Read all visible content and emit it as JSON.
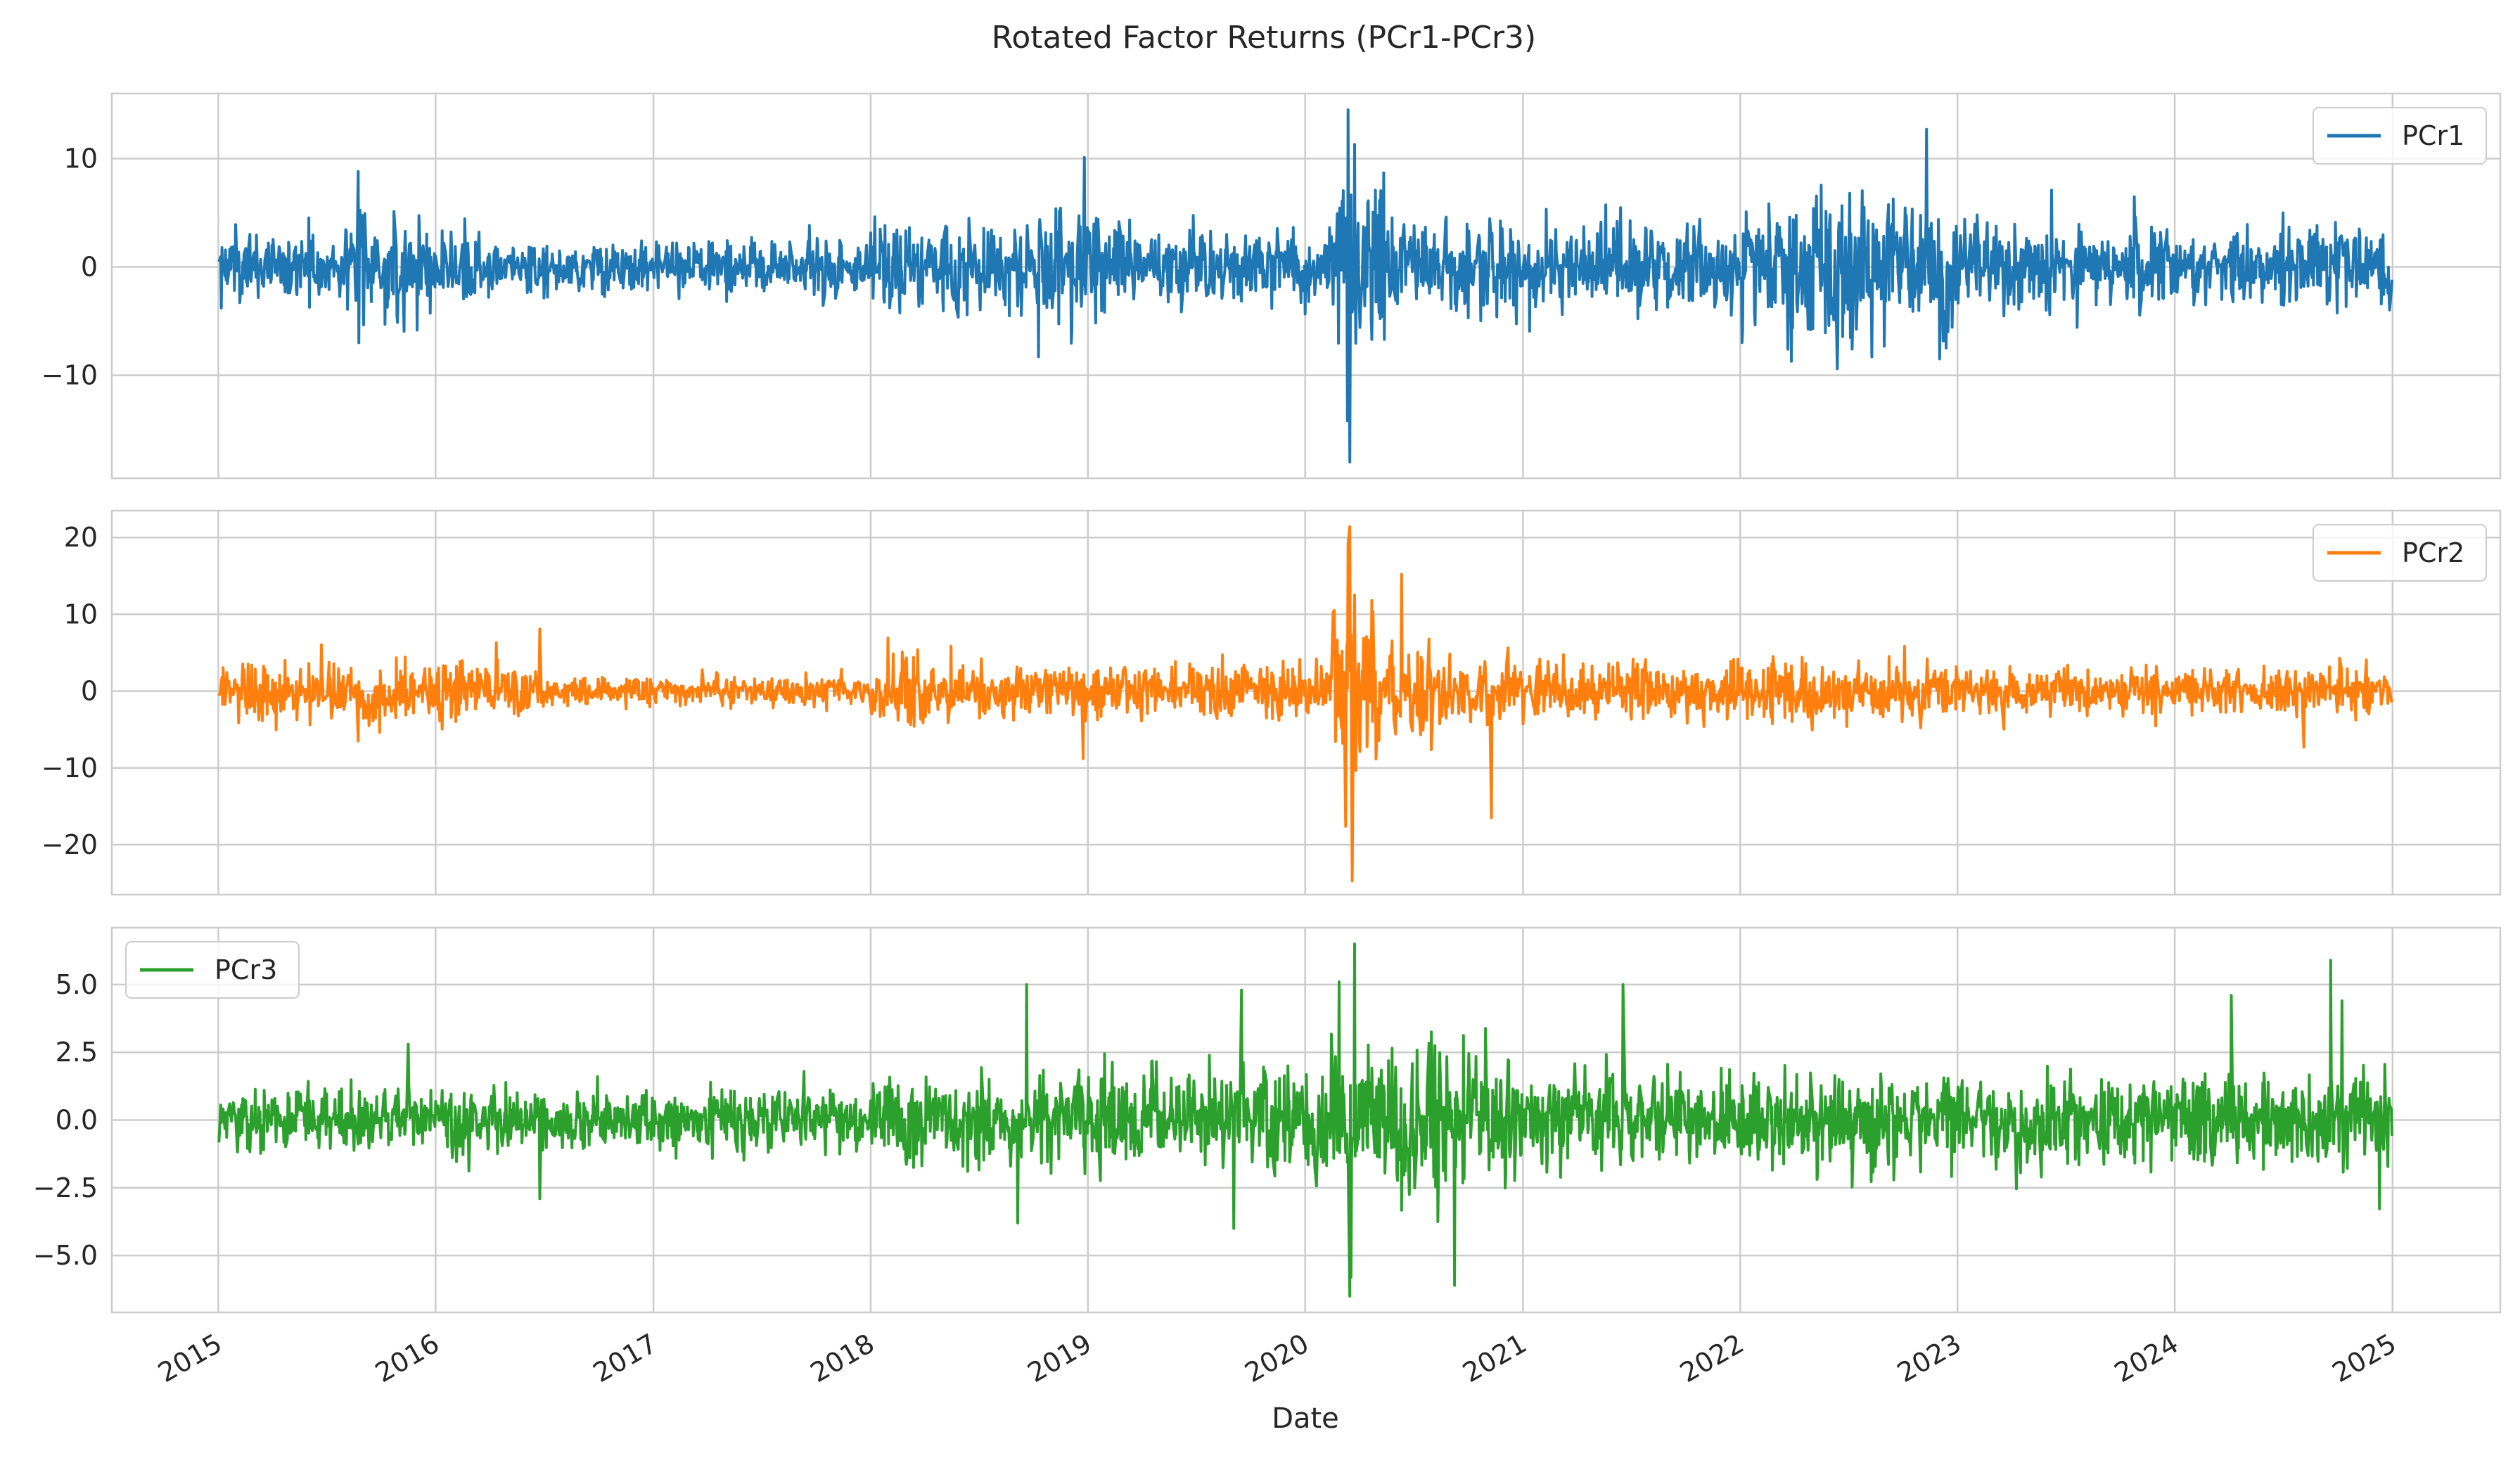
{
  "figure": {
    "title": "Rotated Factor Returns (PCr1-PCr3)",
    "xlabel": "Date"
  },
  "chart_data": [
    {
      "type": "line",
      "series_name": "PCr1",
      "color": "#1f77b4",
      "legend_loc": "upper right",
      "xlim": [
        "2014-07-06",
        "2025-07-01"
      ],
      "ylim": [
        -19.5,
        16.0
      ],
      "yticks": [
        -10,
        0,
        10
      ],
      "ytick_labels": [
        "−10",
        "0",
        "10"
      ],
      "grid": true,
      "date_range": [
        "2015-01-02",
        "2024-12-31"
      ],
      "extrema": [
        {
          "date": "2015-08-24",
          "value": 8.8
        },
        {
          "date": "2015-08-24",
          "value": -7.0
        },
        {
          "date": "2018-12-26",
          "value": 10.1
        },
        {
          "date": "2018-10-10",
          "value": -8.3
        },
        {
          "date": "2020-03-13",
          "value": 14.5
        },
        {
          "date": "2020-03-16",
          "value": -18.0
        },
        {
          "date": "2020-03-24",
          "value": 11.3
        },
        {
          "date": "2020-03-12",
          "value": -14.2
        },
        {
          "date": "2022-11-10",
          "value": 12.7
        },
        {
          "date": "2022-06-13",
          "value": -9.4
        }
      ],
      "volatility_regimes": [
        {
          "start": "2015-01-01",
          "end": "2015-07-31",
          "std": 1.5
        },
        {
          "start": "2015-08-01",
          "end": "2016-03-31",
          "std": 2.3
        },
        {
          "start": "2016-04-01",
          "end": "2017-12-31",
          "std": 1.2
        },
        {
          "start": "2018-01-01",
          "end": "2018-09-30",
          "std": 1.9
        },
        {
          "start": "2018-10-01",
          "end": "2019-01-31",
          "std": 3.2
        },
        {
          "start": "2019-02-01",
          "end": "2020-02-15",
          "std": 1.7
        },
        {
          "start": "2020-02-16",
          "end": "2020-05-15",
          "std": 4.5
        },
        {
          "start": "2020-05-16",
          "end": "2021-12-31",
          "std": 2.0
        },
        {
          "start": "2022-01-01",
          "end": "2022-12-31",
          "std": 3.2
        },
        {
          "start": "2023-01-01",
          "end": "2024-12-31",
          "std": 1.9
        }
      ]
    },
    {
      "type": "line",
      "series_name": "PCr2",
      "color": "#ff7f0e",
      "legend_loc": "upper right",
      "xlim": [
        "2014-07-06",
        "2025-07-01"
      ],
      "ylim": [
        -26.5,
        23.5
      ],
      "yticks": [
        -20,
        -10,
        0,
        10,
        20
      ],
      "ytick_labels": [
        "−20",
        "−10",
        "0",
        "10",
        "20"
      ],
      "grid": true,
      "date_range": [
        "2015-01-02",
        "2024-12-31"
      ],
      "extrema": [
        {
          "date": "2016-06-24",
          "value": 8.1
        },
        {
          "date": "2015-08-24",
          "value": -6.5
        },
        {
          "date": "2018-12-24",
          "value": -8.8
        },
        {
          "date": "2020-03-16",
          "value": 21.4
        },
        {
          "date": "2020-03-13",
          "value": 19.2
        },
        {
          "date": "2020-03-20",
          "value": -24.7
        },
        {
          "date": "2020-03-09",
          "value": -17.6
        },
        {
          "date": "2020-06-11",
          "value": 15.2
        },
        {
          "date": "2020-11-09",
          "value": -16.5
        },
        {
          "date": "2024-08-05",
          "value": -7.3
        }
      ],
      "volatility_regimes": [
        {
          "start": "2015-01-01",
          "end": "2016-06-30",
          "std": 1.9
        },
        {
          "start": "2016-07-01",
          "end": "2017-12-31",
          "std": 1.0
        },
        {
          "start": "2018-01-01",
          "end": "2018-03-31",
          "std": 2.4
        },
        {
          "start": "2018-04-01",
          "end": "2020-02-15",
          "std": 1.6
        },
        {
          "start": "2020-02-16",
          "end": "2020-04-30",
          "std": 6.5
        },
        {
          "start": "2020-05-01",
          "end": "2020-07-31",
          "std": 3.6
        },
        {
          "start": "2020-08-01",
          "end": "2022-12-31",
          "std": 1.9
        },
        {
          "start": "2023-01-01",
          "end": "2024-12-31",
          "std": 1.4
        }
      ]
    },
    {
      "type": "line",
      "series_name": "PCr3",
      "color": "#2ca02c",
      "legend_loc": "upper left",
      "xlim": [
        "2014-07-06",
        "2025-07-01"
      ],
      "ylim": [
        -7.1,
        7.1
      ],
      "yticks": [
        -5.0,
        -2.5,
        0.0,
        2.5,
        5.0
      ],
      "ytick_labels": [
        "−5.0",
        "−2.5",
        "0.0",
        "2.5",
        "5.0"
      ],
      "grid": true,
      "date_range": [
        "2015-01-02",
        "2024-12-31"
      ],
      "extrema": [
        {
          "date": "2015-11-16",
          "value": 2.8
        },
        {
          "date": "2016-06-24",
          "value": -2.9
        },
        {
          "date": "2018-09-20",
          "value": 5.0
        },
        {
          "date": "2018-09-05",
          "value": -3.8
        },
        {
          "date": "2019-09-16",
          "value": 4.8
        },
        {
          "date": "2019-09-03",
          "value": -4.0
        },
        {
          "date": "2020-02-27",
          "value": 5.1
        },
        {
          "date": "2020-03-16",
          "value": -6.5
        },
        {
          "date": "2020-03-24",
          "value": 6.5
        },
        {
          "date": "2020-03-18",
          "value": -5.8
        },
        {
          "date": "2020-09-08",
          "value": -6.1
        },
        {
          "date": "2021-06-18",
          "value": 5.0
        },
        {
          "date": "2024-09-19",
          "value": 5.9
        },
        {
          "date": "2024-10-08",
          "value": 4.4
        },
        {
          "date": "2024-04-05",
          "value": 4.6
        }
      ],
      "volatility_regimes": [
        {
          "start": "2015-01-01",
          "end": "2017-12-31",
          "std": 0.55
        },
        {
          "start": "2018-01-01",
          "end": "2019-12-31",
          "std": 0.85
        },
        {
          "start": "2020-01-01",
          "end": "2020-12-31",
          "std": 1.35
        },
        {
          "start": "2021-01-01",
          "end": "2024-12-31",
          "std": 0.85
        }
      ]
    }
  ],
  "x_axis": {
    "tick_dates": [
      "2015-01-01",
      "2016-01-01",
      "2017-01-01",
      "2018-01-01",
      "2019-01-01",
      "2020-01-01",
      "2021-01-01",
      "2022-01-01",
      "2023-01-01",
      "2024-01-01",
      "2025-01-01"
    ],
    "tick_labels": [
      "2015",
      "2016",
      "2017",
      "2018",
      "2019",
      "2020",
      "2021",
      "2022",
      "2023",
      "2024",
      "2025"
    ]
  }
}
